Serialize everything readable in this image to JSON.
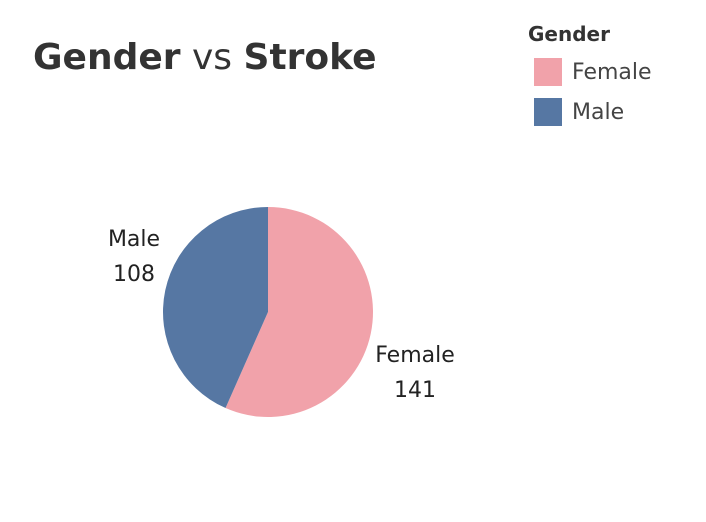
{
  "title": {
    "part1": "Gender",
    "part2": "vs",
    "part3": "Stroke"
  },
  "legend": {
    "title": "Gender",
    "items": [
      {
        "label": "Female",
        "color": "#f1a2aa"
      },
      {
        "label": "Male",
        "color": "#5677a3"
      }
    ]
  },
  "chart_data": {
    "type": "pie",
    "title": "Gender vs Stroke",
    "legend_title": "Gender",
    "legend_position": "top-right",
    "categories": [
      "Female",
      "Male"
    ],
    "values": [
      141,
      108
    ],
    "colors": [
      "#f1a2aa",
      "#5677a3"
    ]
  }
}
